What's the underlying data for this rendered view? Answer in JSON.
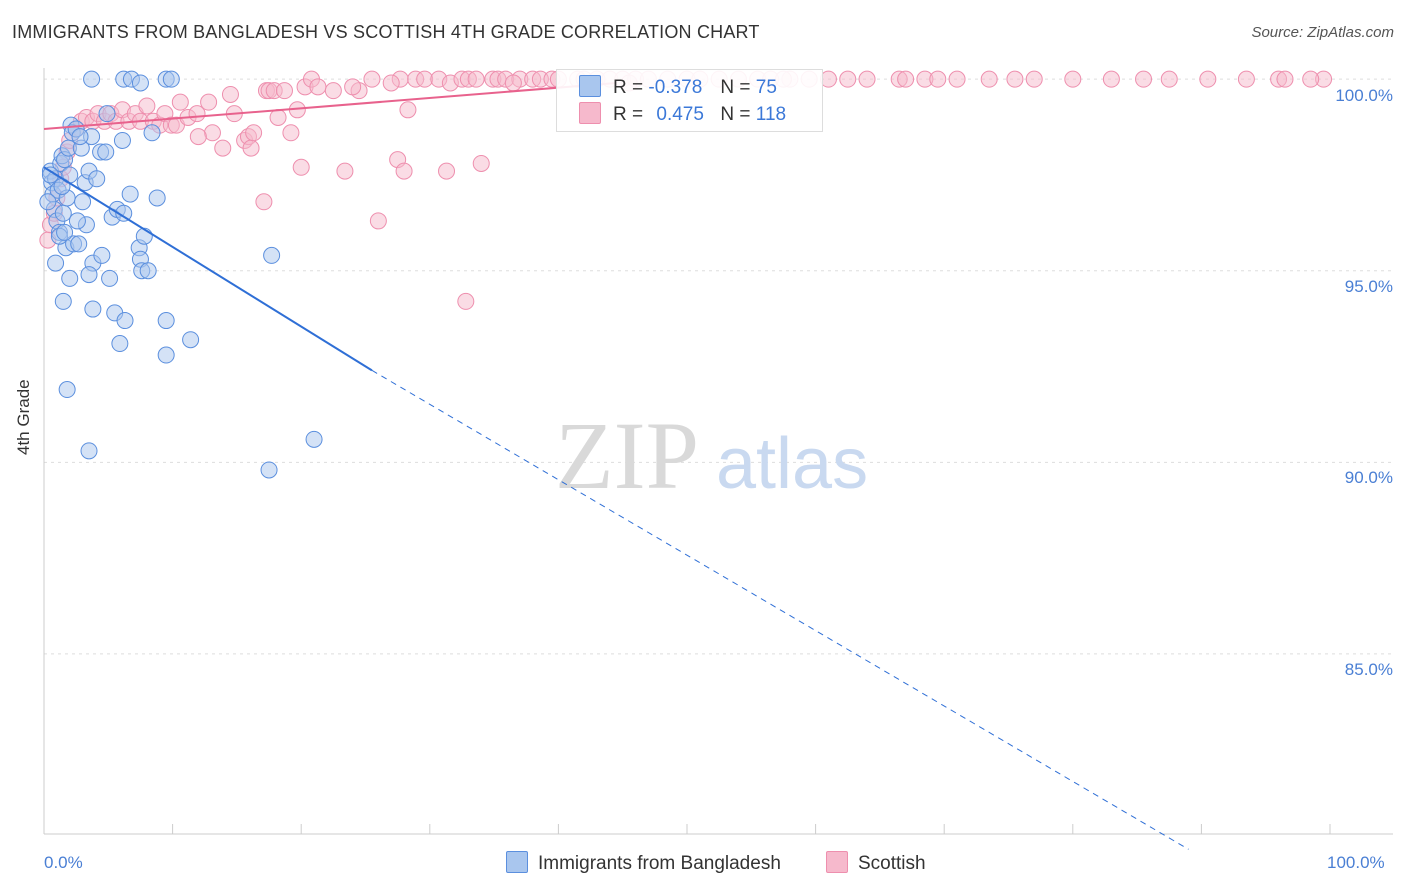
{
  "title": "IMMIGRANTS FROM BANGLADESH VS SCOTTISH 4TH GRADE CORRELATION CHART",
  "source": "Source: ZipAtlas.com",
  "watermark": {
    "zip": "ZIP",
    "atlas": "atlas"
  },
  "legend_top": {
    "blue": {
      "r_label": "R =",
      "r_value": "-0.378",
      "n_label": "N =",
      "n_value": "75"
    },
    "pink": {
      "r_label": "R =",
      "r_value": "0.475",
      "n_label": "N =",
      "n_value": "118"
    }
  },
  "legend_bottom": {
    "blue": "Immigrants from Bangladesh",
    "pink": "Scottish"
  },
  "colors": {
    "blue_fill": "#a9c6ee",
    "blue_stroke": "#5b8fde",
    "blue_line": "#2f6fd6",
    "pink_fill": "#f6b9cc",
    "pink_stroke": "#ee8fae",
    "pink_line": "#e8628d",
    "axis_text": "#4a7fd4"
  },
  "chart_data": {
    "type": "scatter",
    "title": "IMMIGRANTS FROM BANGLADESH VS SCOTTISH 4TH GRADE CORRELATION CHART",
    "xlabel": "",
    "ylabel": "4th Grade",
    "xlim": [
      0,
      100
    ],
    "ylim": [
      80.3,
      100.5
    ],
    "x_tick_labels": [
      "0.0%",
      "100.0%"
    ],
    "y_ticks": [
      {
        "value": 100,
        "label": "100.0%"
      },
      {
        "value": 95,
        "label": "95.0%"
      },
      {
        "value": 90,
        "label": "90.0%"
      },
      {
        "value": 85,
        "label": "85.0%"
      }
    ],
    "series": [
      {
        "name": "Immigrants from Bangladesh",
        "r": -0.378,
        "n": 75,
        "trend": {
          "x0": 0,
          "y0": 97.7,
          "x1": 25.5,
          "y1": 92.4,
          "dashed_to_x": 89,
          "dashed_to_y": 79.9
        },
        "points": [
          [
            0.5,
            97.6
          ],
          [
            0.6,
            97.3
          ],
          [
            0.7,
            97.0
          ],
          [
            0.8,
            96.6
          ],
          [
            0.9,
            97.4
          ],
          [
            1.0,
            96.3
          ],
          [
            1.1,
            97.1
          ],
          [
            1.2,
            96.0
          ],
          [
            1.3,
            97.8
          ],
          [
            1.4,
            98.0
          ],
          [
            1.5,
            96.5
          ],
          [
            1.6,
            97.9
          ],
          [
            1.7,
            95.6
          ],
          [
            1.8,
            96.9
          ],
          [
            1.9,
            98.2
          ],
          [
            2.1,
            98.8
          ],
          [
            2.2,
            98.6
          ],
          [
            2.3,
            95.7
          ],
          [
            2.5,
            98.7
          ],
          [
            2.7,
            95.7
          ],
          [
            2.9,
            98.2
          ],
          [
            3.2,
            97.3
          ],
          [
            3.3,
            96.2
          ],
          [
            3.5,
            97.6
          ],
          [
            3.8,
            95.2
          ],
          [
            4.4,
            98.1
          ],
          [
            4.8,
            98.1
          ],
          [
            5.3,
            96.4
          ],
          [
            5.7,
            96.6
          ],
          [
            6.2,
            96.5
          ],
          [
            6.7,
            97.0
          ],
          [
            7.4,
            95.6
          ],
          [
            7.5,
            95.3
          ],
          [
            7.6,
            95.0
          ],
          [
            7.8,
            95.9
          ],
          [
            8.1,
            95.0
          ],
          [
            8.4,
            98.6
          ],
          [
            3.8,
            94.0
          ],
          [
            2.0,
            94.8
          ],
          [
            1.5,
            94.2
          ],
          [
            3.5,
            94.9
          ],
          [
            4.5,
            95.4
          ],
          [
            5.1,
            94.8
          ],
          [
            5.5,
            93.9
          ],
          [
            6.3,
            93.7
          ],
          [
            5.9,
            93.1
          ],
          [
            9.5,
            93.7
          ],
          [
            9.5,
            92.8
          ],
          [
            11.4,
            93.2
          ],
          [
            1.8,
            91.9
          ],
          [
            3.5,
            90.3
          ],
          [
            17.5,
            89.8
          ],
          [
            21.0,
            90.6
          ],
          [
            17.7,
            95.4
          ],
          [
            3.7,
            100.0
          ],
          [
            6.2,
            100.0
          ],
          [
            6.8,
            100.0
          ],
          [
            7.5,
            99.9
          ],
          [
            9.5,
            100.0
          ],
          [
            9.9,
            100.0
          ],
          [
            3.7,
            98.5
          ],
          [
            2.8,
            98.5
          ],
          [
            0.3,
            96.8
          ],
          [
            0.5,
            97.5
          ],
          [
            1.2,
            95.9
          ],
          [
            0.9,
            95.2
          ],
          [
            1.4,
            97.2
          ],
          [
            2.0,
            97.5
          ],
          [
            4.1,
            97.4
          ],
          [
            3.0,
            96.8
          ],
          [
            2.6,
            96.3
          ],
          [
            6.1,
            98.4
          ],
          [
            4.9,
            99.1
          ],
          [
            1.6,
            96.0
          ],
          [
            8.8,
            96.9
          ]
        ]
      },
      {
        "name": "Scottish",
        "r": 0.475,
        "n": 118,
        "trend": {
          "x0": 0,
          "y0": 98.7,
          "x1": 44.5,
          "y1": 99.9
        },
        "points": [
          [
            0.3,
            95.8
          ],
          [
            0.5,
            96.2
          ],
          [
            0.8,
            96.5
          ],
          [
            1.0,
            96.9
          ],
          [
            1.3,
            97.4
          ],
          [
            1.5,
            97.7
          ],
          [
            1.8,
            98.1
          ],
          [
            2.0,
            98.4
          ],
          [
            2.5,
            98.7
          ],
          [
            2.9,
            98.9
          ],
          [
            3.3,
            99.0
          ],
          [
            3.8,
            98.9
          ],
          [
            4.2,
            99.1
          ],
          [
            4.7,
            98.9
          ],
          [
            5.2,
            99.1
          ],
          [
            5.6,
            98.9
          ],
          [
            6.1,
            99.2
          ],
          [
            6.6,
            98.9
          ],
          [
            7.1,
            99.1
          ],
          [
            7.5,
            98.9
          ],
          [
            8.0,
            99.3
          ],
          [
            8.5,
            98.9
          ],
          [
            9.0,
            98.8
          ],
          [
            9.4,
            99.1
          ],
          [
            9.9,
            98.8
          ],
          [
            10.6,
            99.4
          ],
          [
            10.3,
            98.8
          ],
          [
            11.2,
            99.0
          ],
          [
            11.9,
            99.1
          ],
          [
            12.8,
            99.4
          ],
          [
            13.1,
            98.6
          ],
          [
            13.9,
            98.2
          ],
          [
            14.5,
            99.6
          ],
          [
            14.8,
            99.1
          ],
          [
            15.6,
            98.4
          ],
          [
            15.9,
            98.5
          ],
          [
            16.1,
            98.2
          ],
          [
            16.3,
            98.6
          ],
          [
            17.1,
            96.8
          ],
          [
            17.3,
            99.7
          ],
          [
            17.5,
            99.7
          ],
          [
            17.9,
            99.7
          ],
          [
            18.7,
            99.7
          ],
          [
            19.2,
            98.6
          ],
          [
            19.7,
            99.2
          ],
          [
            20.0,
            97.7
          ],
          [
            20.3,
            99.8
          ],
          [
            20.8,
            100.0
          ],
          [
            21.3,
            99.8
          ],
          [
            22.5,
            99.7
          ],
          [
            23.4,
            97.6
          ],
          [
            24.5,
            99.7
          ],
          [
            25.5,
            100.0
          ],
          [
            26.0,
            96.3
          ],
          [
            27.5,
            97.9
          ],
          [
            27.7,
            100.0
          ],
          [
            28.0,
            97.6
          ],
          [
            28.3,
            99.2
          ],
          [
            28.9,
            100.0
          ],
          [
            29.6,
            100.0
          ],
          [
            30.7,
            100.0
          ],
          [
            31.3,
            97.6
          ],
          [
            31.6,
            99.9
          ],
          [
            32.5,
            100.0
          ],
          [
            32.8,
            94.2
          ],
          [
            33.0,
            100.0
          ],
          [
            33.6,
            100.0
          ],
          [
            34.0,
            97.8
          ],
          [
            34.9,
            100.0
          ],
          [
            35.3,
            100.0
          ],
          [
            35.9,
            100.0
          ],
          [
            37.0,
            100.0
          ],
          [
            38.0,
            100.0
          ],
          [
            38.6,
            100.0
          ],
          [
            39.5,
            100.0
          ],
          [
            40.0,
            100.0
          ],
          [
            41.5,
            100.0
          ],
          [
            42.0,
            100.0
          ],
          [
            43.0,
            100.0
          ],
          [
            44.0,
            100.0
          ],
          [
            45.0,
            100.0
          ],
          [
            46.0,
            100.0
          ],
          [
            47.0,
            100.0
          ],
          [
            48.5,
            100.0
          ],
          [
            50.0,
            100.0
          ],
          [
            51.0,
            100.0
          ],
          [
            52.5,
            100.0
          ],
          [
            54.0,
            100.0
          ],
          [
            55.5,
            100.0
          ],
          [
            56.5,
            100.0
          ],
          [
            58.0,
            100.0
          ],
          [
            59.5,
            100.0
          ],
          [
            61.0,
            100.0
          ],
          [
            62.5,
            100.0
          ],
          [
            64.0,
            100.0
          ],
          [
            66.5,
            100.0
          ],
          [
            68.5,
            100.0
          ],
          [
            69.5,
            100.0
          ],
          [
            71.0,
            100.0
          ],
          [
            73.5,
            100.0
          ],
          [
            75.5,
            100.0
          ],
          [
            77.0,
            100.0
          ],
          [
            80.0,
            100.0
          ],
          [
            83.0,
            100.0
          ],
          [
            85.5,
            100.0
          ],
          [
            87.5,
            100.0
          ],
          [
            90.5,
            100.0
          ],
          [
            93.5,
            100.0
          ],
          [
            96.0,
            100.0
          ],
          [
            96.5,
            100.0
          ],
          [
            99.5,
            100.0
          ],
          [
            98.5,
            100.0
          ],
          [
            67.0,
            100.0
          ],
          [
            57.5,
            100.0
          ],
          [
            45.5,
            99.9
          ],
          [
            36.5,
            99.9
          ],
          [
            27.0,
            99.9
          ],
          [
            24.0,
            99.8
          ],
          [
            18.2,
            99.0
          ],
          [
            12.0,
            98.5
          ]
        ]
      }
    ]
  }
}
